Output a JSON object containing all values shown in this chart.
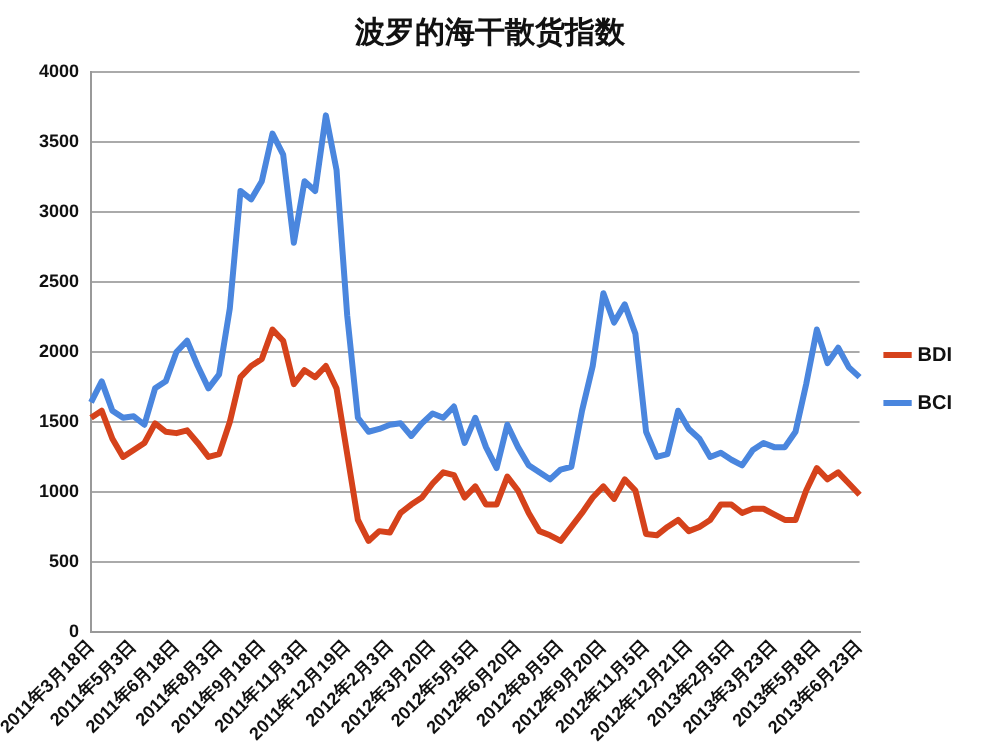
{
  "chart_data": {
    "type": "line",
    "title": "波罗的海干散货指数",
    "categories": [
      "2011年3月18日",
      null,
      null,
      null,
      "2011年5月3日",
      null,
      null,
      null,
      "2011年6月18日",
      null,
      null,
      null,
      "2011年8月3日",
      null,
      null,
      null,
      "2011年9月18日",
      null,
      null,
      null,
      "2011年11月3日",
      null,
      null,
      null,
      "2011年12月19日",
      null,
      null,
      null,
      "2012年2月3日",
      null,
      null,
      null,
      "2012年3月20日",
      null,
      null,
      null,
      "2012年5月5日",
      null,
      null,
      null,
      "2012年6月20日",
      null,
      null,
      null,
      "2012年8月5日",
      null,
      null,
      null,
      "2012年9月20日",
      null,
      null,
      null,
      "2012年11月5日",
      null,
      null,
      null,
      "2012年12月21日",
      null,
      null,
      null,
      "2013年2月5日",
      null,
      null,
      null,
      "2013年3月23日",
      null,
      null,
      null,
      "2013年5月8日",
      null,
      null,
      null,
      "2013年6月23日"
    ],
    "series": [
      {
        "name": "BDI",
        "color": "#d5421b",
        "values": [
          1530,
          1580,
          1380,
          1250,
          1300,
          1350,
          1490,
          1430,
          1420,
          1440,
          1350,
          1250,
          1270,
          1500,
          1820,
          1900,
          1950,
          2160,
          2080,
          1770,
          1870,
          1820,
          1900,
          1740,
          1270,
          800,
          650,
          720,
          710,
          850,
          910,
          960,
          1060,
          1140,
          1120,
          960,
          1040,
          910,
          910,
          1110,
          1010,
          850,
          720,
          690,
          650,
          750,
          850,
          960,
          1040,
          950,
          1090,
          1010,
          700,
          690,
          750,
          800,
          720,
          750,
          800,
          910,
          910,
          850,
          880,
          880,
          840,
          800,
          800,
          1010,
          1170,
          1090,
          1140,
          1060,
          980
        ]
      },
      {
        "name": "BCI",
        "color": "#4a86de",
        "values": [
          1640,
          1790,
          1580,
          1530,
          1540,
          1480,
          1740,
          1790,
          2000,
          2080,
          1900,
          1740,
          1840,
          2310,
          3150,
          3090,
          3220,
          3560,
          3410,
          2780,
          3220,
          3150,
          3690,
          3300,
          2260,
          1530,
          1430,
          1450,
          1480,
          1490,
          1400,
          1490,
          1560,
          1530,
          1610,
          1350,
          1530,
          1320,
          1170,
          1480,
          1320,
          1190,
          1140,
          1090,
          1160,
          1180,
          1580,
          1900,
          2420,
          2210,
          2340,
          2130,
          1430,
          1250,
          1270,
          1580,
          1450,
          1380,
          1250,
          1280,
          1230,
          1190,
          1300,
          1350,
          1320,
          1320,
          1430,
          1770,
          2160,
          1920,
          2030,
          1890,
          1820
        ]
      }
    ],
    "ylim": [
      0,
      4000
    ],
    "yticks": [
      0,
      500,
      1000,
      1500,
      2000,
      2500,
      3000,
      3500,
      4000
    ],
    "grid": "y",
    "legend": "right",
    "marker": "none",
    "line_style": "solid"
  }
}
